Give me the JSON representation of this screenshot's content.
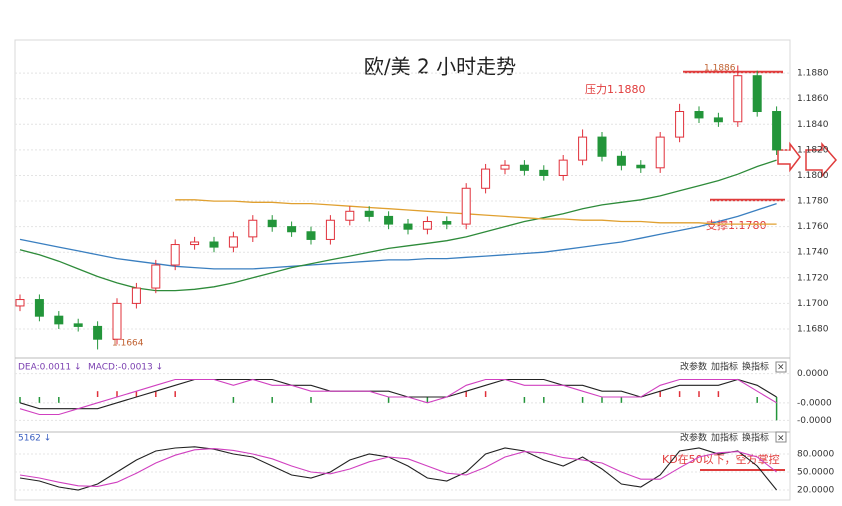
{
  "chart_data": [
    {
      "type": "candlestick",
      "title": "欧/美 2 小时走势",
      "open": [
        1.1698,
        1.1703,
        1.169,
        1.1684,
        1.1682,
        1.1672,
        1.17,
        1.1712,
        1.173,
        1.1746,
        1.1748,
        1.1744,
        1.1752,
        1.1765,
        1.176,
        1.1756,
        1.175,
        1.1765,
        1.1772,
        1.1768,
        1.1762,
        1.1758,
        1.1764,
        1.1762,
        1.179,
        1.1805,
        1.1808,
        1.1804,
        1.18,
        1.1812,
        1.183,
        1.1815,
        1.1808,
        1.1806,
        1.183,
        1.185,
        1.1845,
        1.1842,
        1.1878,
        1.185
      ],
      "high": [
        1.1707,
        1.1707,
        1.1694,
        1.1688,
        1.1686,
        1.1704,
        1.1716,
        1.1734,
        1.175,
        1.1752,
        1.1752,
        1.1756,
        1.1769,
        1.1769,
        1.1764,
        1.176,
        1.1769,
        1.1776,
        1.1776,
        1.1772,
        1.1766,
        1.1768,
        1.1768,
        1.1794,
        1.1809,
        1.1812,
        1.1812,
        1.1808,
        1.1816,
        1.1836,
        1.1834,
        1.1819,
        1.1812,
        1.1834,
        1.1856,
        1.1854,
        1.1849,
        1.1886,
        1.1882,
        1.1854
      ],
      "low": [
        1.1694,
        1.1686,
        1.168,
        1.1678,
        1.1664,
        1.1668,
        1.1696,
        1.1708,
        1.1726,
        1.1742,
        1.174,
        1.174,
        1.1748,
        1.1756,
        1.1752,
        1.1746,
        1.1746,
        1.1761,
        1.1764,
        1.1758,
        1.1754,
        1.1754,
        1.1758,
        1.1758,
        1.1786,
        1.1801,
        1.18,
        1.1796,
        1.1796,
        1.1808,
        1.1811,
        1.1804,
        1.1802,
        1.1802,
        1.1826,
        1.1841,
        1.1838,
        1.1838,
        1.1846,
        1.1816
      ],
      "close": [
        1.1703,
        1.169,
        1.1684,
        1.1682,
        1.1672,
        1.17,
        1.1712,
        1.173,
        1.1746,
        1.1748,
        1.1744,
        1.1752,
        1.1765,
        1.176,
        1.1756,
        1.175,
        1.1765,
        1.1772,
        1.1768,
        1.1762,
        1.1758,
        1.1764,
        1.1762,
        1.179,
        1.1805,
        1.1808,
        1.1804,
        1.18,
        1.1812,
        1.183,
        1.1815,
        1.1808,
        1.1806,
        1.183,
        1.185,
        1.1845,
        1.1842,
        1.1878,
        1.185,
        1.182
      ],
      "up_color": "#e0303a",
      "down_color": "#23953a",
      "series": [
        {
          "color": "#3a7fc0",
          "values": [
            1.175,
            1.1747,
            1.1744,
            1.1741,
            1.1738,
            1.1735,
            1.1733,
            1.1731,
            1.1729,
            1.1728,
            1.1727,
            1.1727,
            1.1727,
            1.1728,
            1.1729,
            1.173,
            1.1731,
            1.1732,
            1.1733,
            1.1734,
            1.1734,
            1.1735,
            1.1735,
            1.1736,
            1.1737,
            1.1738,
            1.1739,
            1.174,
            1.1742,
            1.1744,
            1.1746,
            1.1748,
            1.1751,
            1.1754,
            1.1757,
            1.176,
            1.1764,
            1.1768,
            1.1773,
            1.1778
          ]
        },
        {
          "color": "#2e8b3a",
          "values": [
            1.1742,
            1.1738,
            1.1733,
            1.1727,
            1.1721,
            1.1716,
            1.1712,
            1.171,
            1.171,
            1.1711,
            1.1713,
            1.1716,
            1.172,
            1.1724,
            1.1728,
            1.1731,
            1.1734,
            1.1737,
            1.174,
            1.1743,
            1.1745,
            1.1747,
            1.1749,
            1.1752,
            1.1756,
            1.176,
            1.1764,
            1.1767,
            1.177,
            1.1774,
            1.1777,
            1.1779,
            1.1781,
            1.1784,
            1.1788,
            1.1792,
            1.1796,
            1.1801,
            1.1807,
            1.1812
          ]
        },
        {
          "color": "#e0a030",
          "values": [
            null,
            null,
            null,
            null,
            null,
            null,
            null,
            null,
            1.1781,
            1.1781,
            1.178,
            1.178,
            1.1779,
            1.1779,
            1.1778,
            1.1778,
            1.1777,
            1.1776,
            1.1775,
            1.1774,
            1.1773,
            1.1772,
            1.1771,
            1.177,
            1.1769,
            1.1768,
            1.1767,
            1.1766,
            1.1766,
            1.1765,
            1.1765,
            1.1764,
            1.1764,
            1.1763,
            1.1763,
            1.1763,
            1.1762,
            1.1762,
            1.1762,
            1.1762
          ]
        }
      ],
      "ylim": [
        1.1662,
        1.1902
      ],
      "yticks": [
        {
          "value": 1.168,
          "label": "1.1680"
        },
        {
          "value": 1.17,
          "label": "1.1700"
        },
        {
          "value": 1.172,
          "label": "1.1720"
        },
        {
          "value": 1.174,
          "label": "1.1740"
        },
        {
          "value": 1.176,
          "label": "1.1760"
        },
        {
          "value": 1.178,
          "label": "1.1780"
        },
        {
          "value": 1.18,
          "label": "1.1800"
        },
        {
          "value": 1.182,
          "label": "1.1820"
        },
        {
          "value": 1.184,
          "label": "1.1840"
        },
        {
          "value": 1.186,
          "label": "1.1860"
        },
        {
          "value": 1.188,
          "label": "1.1880"
        }
      ],
      "grid": true,
      "annotations": [
        "压力1.1880",
        "支撑1.1780",
        "1.1664",
        "1.1886"
      ]
    },
    {
      "type": "macd",
      "legend": [
        "DEA:0.0011 ↓",
        "MACD:-0.0013 ↓"
      ],
      "buttons": [
        "改参数",
        "加指标",
        "换指标",
        "×"
      ],
      "series": [
        {
          "color": "#222222",
          "values": [
            -1e-05,
            -2e-05,
            -2e-05,
            -2e-05,
            -2e-05,
            -1e-05,
            0,
            1e-05,
            2e-05,
            3e-05,
            3e-05,
            3e-05,
            3e-05,
            3e-05,
            2e-05,
            2e-05,
            1e-05,
            1e-05,
            1e-05,
            1e-05,
            0,
            0,
            0,
            1e-05,
            2e-05,
            3e-05,
            3e-05,
            3e-05,
            2e-05,
            2e-05,
            1e-05,
            1e-05,
            0,
            1e-05,
            2e-05,
            2e-05,
            2e-05,
            3e-05,
            2e-05,
            0
          ]
        },
        {
          "color": "#d040c0",
          "values": [
            -2e-05,
            -3e-05,
            -3e-05,
            -2e-05,
            -1e-05,
            0,
            1e-05,
            2e-05,
            3e-05,
            3e-05,
            3e-05,
            2e-05,
            3e-05,
            2e-05,
            2e-05,
            1e-05,
            1e-05,
            1e-05,
            1e-05,
            0,
            0,
            -1e-05,
            0,
            2e-05,
            3e-05,
            3e-05,
            2e-05,
            2e-05,
            2e-05,
            1e-05,
            0,
            0,
            0,
            2e-05,
            3e-05,
            3e-05,
            3e-05,
            3e-05,
            1e-05,
            -1e-05
          ]
        }
      ],
      "histogram": [
        -1e-05,
        -1e-05,
        -1e-05,
        0,
        1e-05,
        1e-05,
        1e-05,
        1e-05,
        1e-05,
        0,
        0,
        -1e-05,
        0,
        -1e-05,
        0,
        -1e-05,
        0,
        0,
        0,
        -1e-05,
        0,
        -1e-05,
        0,
        1e-05,
        1e-05,
        0,
        -1e-05,
        -1e-05,
        0,
        -1e-05,
        -1e-05,
        -1e-05,
        0,
        1e-05,
        1e-05,
        1e-05,
        1e-05,
        0,
        -1e-05,
        -4e-05
      ],
      "ylim": [
        -6e-05,
        6e-05
      ],
      "yticks": [
        {
          "value": 4e-05,
          "label": "0.0000"
        },
        {
          "value": -1e-05,
          "label": "-0.0000"
        },
        {
          "value": -4e-05,
          "label": "-0.0000"
        }
      ]
    },
    {
      "type": "kd",
      "legend": [
        "5162 ↓"
      ],
      "buttons": [
        "改参数",
        "加指标",
        "换指标",
        "×"
      ],
      "series": [
        {
          "color": "#222222",
          "values": [
            40,
            35,
            25,
            20,
            30,
            50,
            70,
            85,
            90,
            92,
            88,
            80,
            75,
            60,
            45,
            40,
            50,
            70,
            80,
            75,
            60,
            40,
            35,
            50,
            80,
            90,
            85,
            70,
            60,
            75,
            55,
            30,
            25,
            45,
            85,
            90,
            80,
            85,
            60,
            20
          ]
        },
        {
          "color": "#d040c0",
          "values": [
            45,
            40,
            33,
            27,
            26,
            33,
            48,
            65,
            78,
            87,
            89,
            86,
            80,
            72,
            60,
            50,
            47,
            55,
            67,
            75,
            72,
            60,
            48,
            45,
            58,
            75,
            84,
            82,
            74,
            70,
            65,
            50,
            38,
            38,
            57,
            75,
            82,
            84,
            75,
            50
          ]
        }
      ],
      "ylim": [
        10,
        100
      ],
      "yticks": [
        {
          "value": 80,
          "label": "80.0000"
        },
        {
          "value": 50,
          "label": "50.0000"
        },
        {
          "value": 20,
          "label": "20.0000"
        }
      ],
      "annotations": [
        "KD在50以下，空方掌控"
      ]
    }
  ]
}
